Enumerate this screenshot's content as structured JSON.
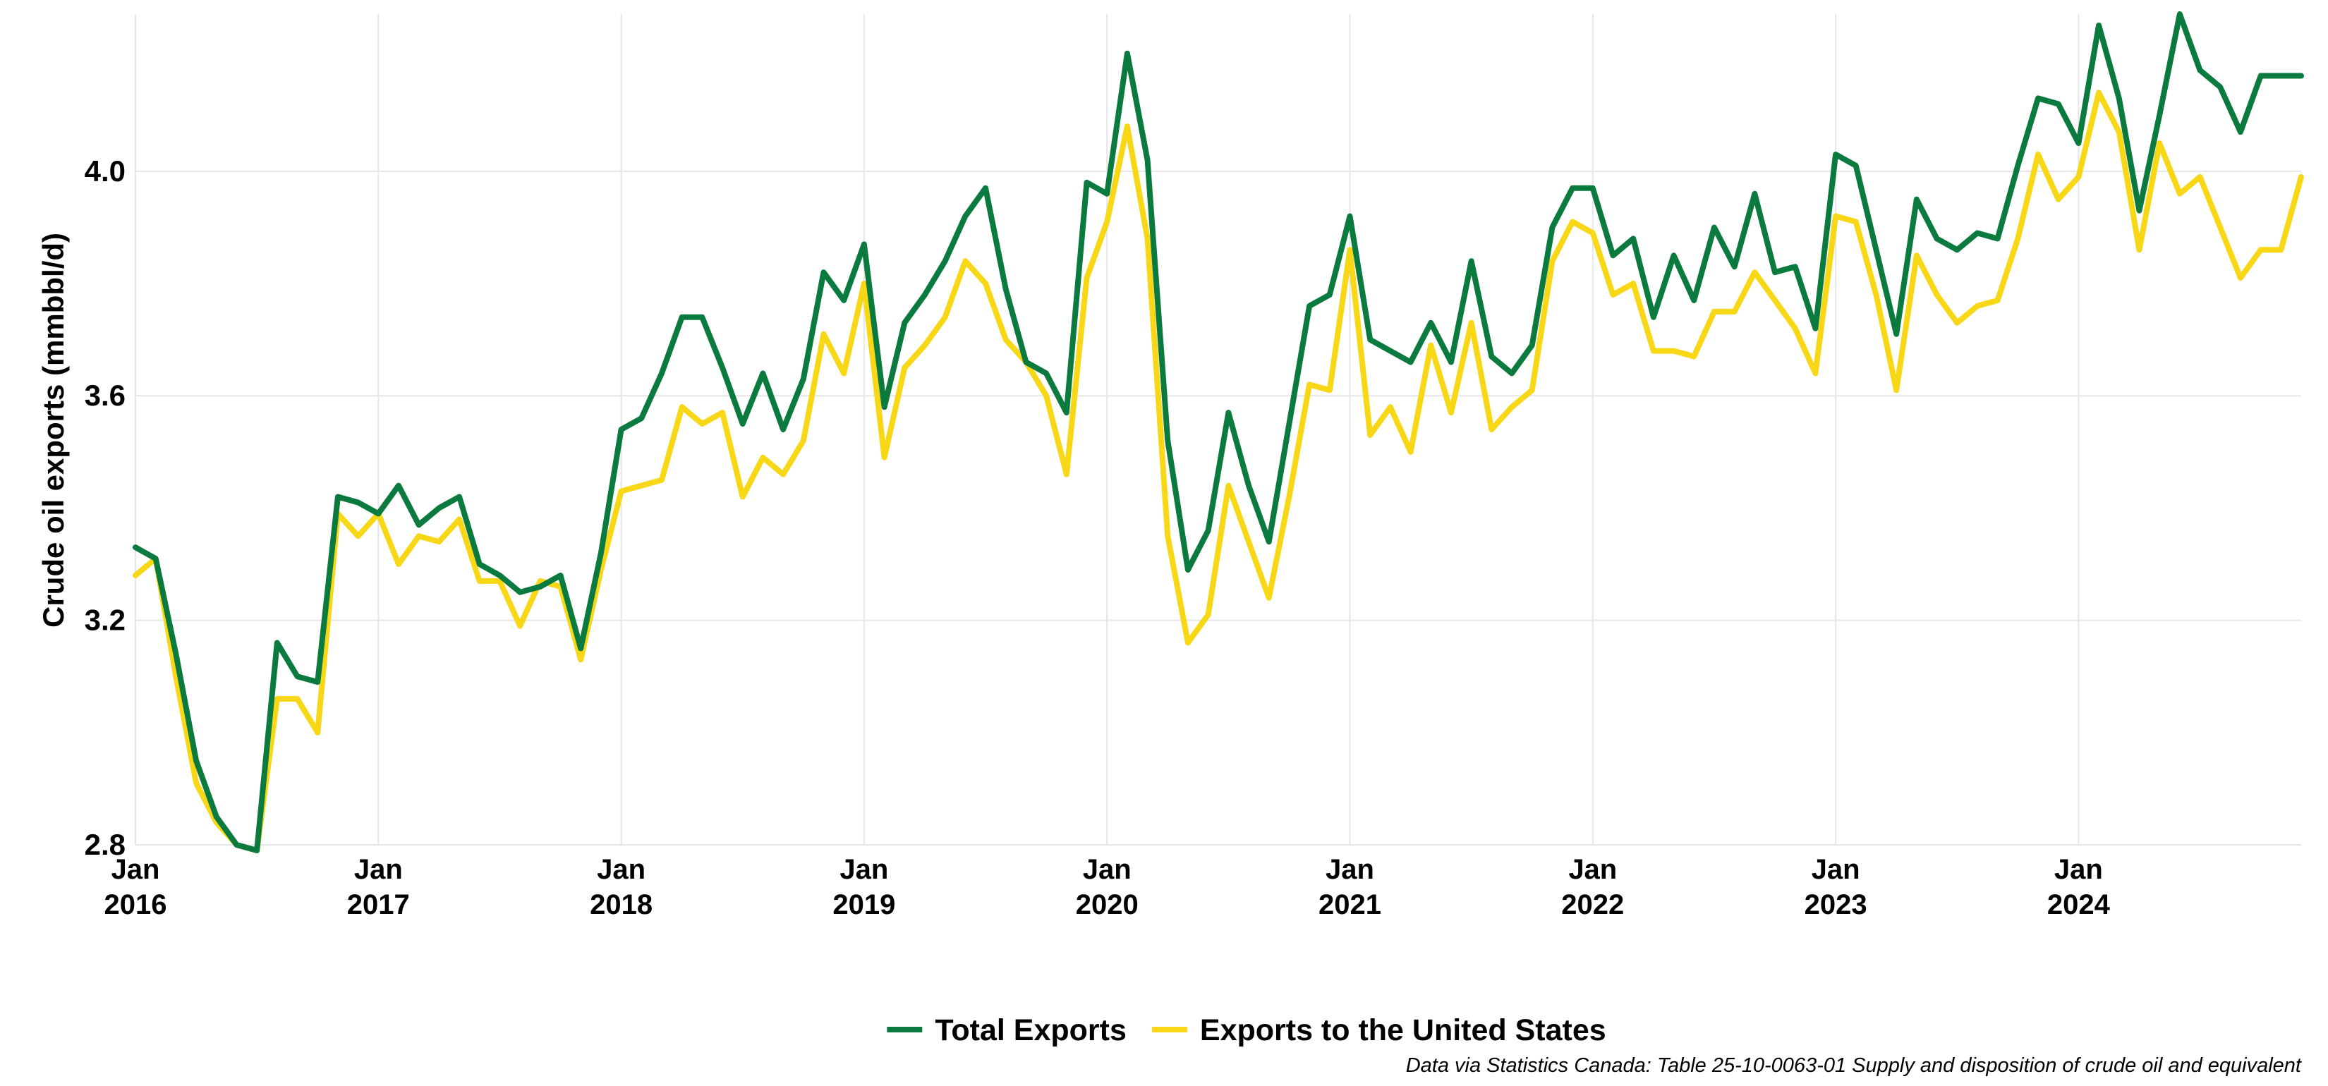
{
  "chart_data": {
    "type": "line",
    "title": "",
    "xlabel": "",
    "ylabel": "Crude oil exports (mmbbl/d)",
    "ylim": [
      2.8,
      4.28
    ],
    "xlim": [
      "2016-01",
      "2024-12"
    ],
    "y_ticks": [
      "2.8",
      "3.2",
      "3.6",
      "4.0"
    ],
    "x_ticks": [
      {
        "month": "Jan",
        "year": "2016"
      },
      {
        "month": "Jan",
        "year": "2017"
      },
      {
        "month": "Jan",
        "year": "2018"
      },
      {
        "month": "Jan",
        "year": "2019"
      },
      {
        "month": "Jan",
        "year": "2020"
      },
      {
        "month": "Jan",
        "year": "2021"
      },
      {
        "month": "Jan",
        "year": "2022"
      },
      {
        "month": "Jan",
        "year": "2023"
      },
      {
        "month": "Jan",
        "year": "2024"
      }
    ],
    "grid": true,
    "legend_position": "bottom",
    "caption": "Data via Statistics Canada: Table 25-10-0063-01  Supply and disposition of crude oil and equivalent",
    "x": [
      "2016-01",
      "2016-02",
      "2016-03",
      "2016-04",
      "2016-05",
      "2016-06",
      "2016-07",
      "2016-08",
      "2016-09",
      "2016-10",
      "2016-11",
      "2016-12",
      "2017-01",
      "2017-02",
      "2017-03",
      "2017-04",
      "2017-05",
      "2017-06",
      "2017-07",
      "2017-08",
      "2017-09",
      "2017-10",
      "2017-11",
      "2017-12",
      "2018-01",
      "2018-02",
      "2018-03",
      "2018-04",
      "2018-05",
      "2018-06",
      "2018-07",
      "2018-08",
      "2018-09",
      "2018-10",
      "2018-11",
      "2018-12",
      "2019-01",
      "2019-02",
      "2019-03",
      "2019-04",
      "2019-05",
      "2019-06",
      "2019-07",
      "2019-08",
      "2019-09",
      "2019-10",
      "2019-11",
      "2019-12",
      "2020-01",
      "2020-02",
      "2020-03",
      "2020-04",
      "2020-05",
      "2020-06",
      "2020-07",
      "2020-08",
      "2020-09",
      "2020-10",
      "2020-11",
      "2020-12",
      "2021-01",
      "2021-02",
      "2021-03",
      "2021-04",
      "2021-05",
      "2021-06",
      "2021-07",
      "2021-08",
      "2021-09",
      "2021-10",
      "2021-11",
      "2021-12",
      "2022-01",
      "2022-02",
      "2022-03",
      "2022-04",
      "2022-05",
      "2022-06",
      "2022-07",
      "2022-08",
      "2022-09",
      "2022-10",
      "2022-11",
      "2022-12",
      "2023-01",
      "2023-02",
      "2023-03",
      "2023-04",
      "2023-05",
      "2023-06",
      "2023-07",
      "2023-08",
      "2023-09",
      "2023-10",
      "2023-11",
      "2023-12",
      "2024-01",
      "2024-02",
      "2024-03",
      "2024-04",
      "2024-05",
      "2024-06",
      "2024-07",
      "2024-08",
      "2024-09",
      "2024-10",
      "2024-11",
      "2024-12"
    ],
    "series": [
      {
        "name": "Total Exports",
        "color": "#0b7a3e",
        "values": [
          3.33,
          3.31,
          3.14,
          2.95,
          2.85,
          2.8,
          2.79,
          3.16,
          3.1,
          3.09,
          3.42,
          3.41,
          3.39,
          3.44,
          3.37,
          3.4,
          3.42,
          3.3,
          3.28,
          3.25,
          3.26,
          3.28,
          3.15,
          3.32,
          3.54,
          3.56,
          3.64,
          3.74,
          3.74,
          3.65,
          3.55,
          3.64,
          3.54,
          3.63,
          3.82,
          3.77,
          3.87,
          3.58,
          3.73,
          3.78,
          3.84,
          3.92,
          3.97,
          3.79,
          3.66,
          3.64,
          3.57,
          3.98,
          3.96,
          4.21,
          4.02,
          3.52,
          3.29,
          3.36,
          3.57,
          3.44,
          3.34,
          3.55,
          3.76,
          3.78,
          3.92,
          3.7,
          3.68,
          3.66,
          3.73,
          3.66,
          3.84,
          3.67,
          3.64,
          3.69,
          3.9,
          3.97,
          3.97,
          3.85,
          3.88,
          3.74,
          3.85,
          3.77,
          3.9,
          3.83,
          3.96,
          3.82,
          3.83,
          3.72,
          4.03,
          4.01,
          3.86,
          3.71,
          3.95,
          3.88,
          3.86,
          3.89,
          3.88,
          4.01,
          4.13,
          4.12,
          4.05,
          4.26,
          4.13,
          3.93,
          4.1,
          4.28,
          4.18,
          4.15,
          4.07,
          4.17,
          4.17,
          4.17
        ]
      },
      {
        "name": "Exports to the United States",
        "color": "#f7d716",
        "values": [
          3.28,
          3.31,
          3.1,
          2.91,
          2.84,
          2.8,
          2.79,
          3.06,
          3.06,
          3.0,
          3.39,
          3.35,
          3.39,
          3.3,
          3.35,
          3.34,
          3.38,
          3.27,
          3.27,
          3.19,
          3.27,
          3.26,
          3.13,
          3.29,
          3.43,
          3.44,
          3.45,
          3.58,
          3.55,
          3.57,
          3.42,
          3.49,
          3.46,
          3.52,
          3.71,
          3.64,
          3.8,
          3.49,
          3.65,
          3.69,
          3.74,
          3.84,
          3.8,
          3.7,
          3.66,
          3.6,
          3.46,
          3.81,
          3.91,
          4.08,
          3.88,
          3.35,
          3.16,
          3.21,
          3.44,
          3.34,
          3.24,
          3.42,
          3.62,
          3.61,
          3.86,
          3.53,
          3.58,
          3.5,
          3.69,
          3.57,
          3.73,
          3.54,
          3.58,
          3.61,
          3.84,
          3.91,
          3.89,
          3.78,
          3.8,
          3.68,
          3.68,
          3.67,
          3.75,
          3.75,
          3.82,
          3.77,
          3.72,
          3.64,
          3.92,
          3.91,
          3.78,
          3.61,
          3.85,
          3.78,
          3.73,
          3.76,
          3.77,
          3.88,
          4.03,
          3.95,
          3.99,
          4.14,
          4.07,
          3.86,
          4.05,
          3.96,
          3.99,
          3.9,
          3.81,
          3.86,
          3.86,
          3.99
        ]
      }
    ]
  }
}
